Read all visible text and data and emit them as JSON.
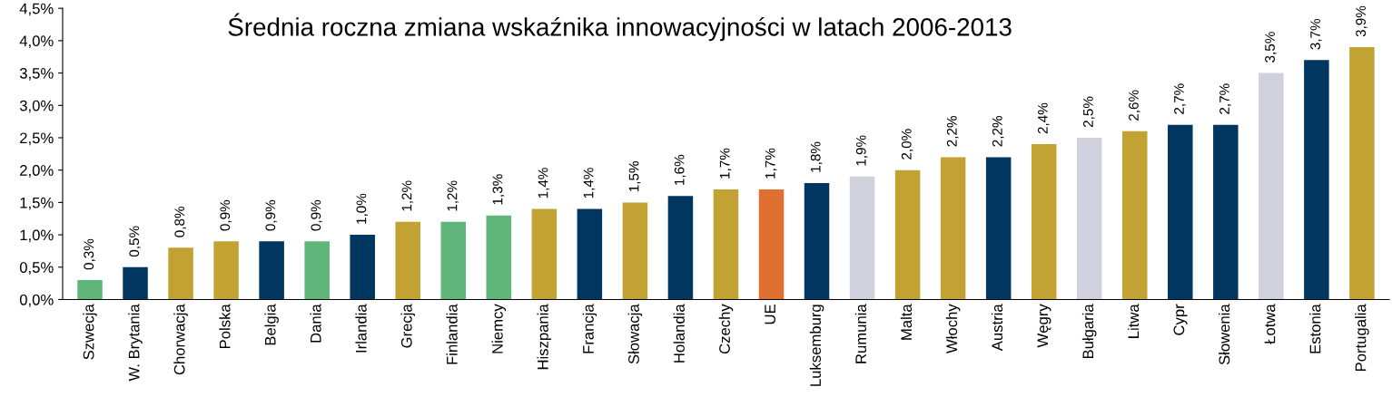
{
  "chart_data": {
    "type": "bar",
    "title": "Średnia roczna zmiana wskaźnika innowacyjności w latach 2006-2013",
    "categories": [
      "Szwecja",
      "W. Brytania",
      "Chorwacja",
      "Polska",
      "Belgia",
      "Dania",
      "Irlandia",
      "Grecja",
      "Finlandia",
      "Niemcy",
      "Hiszpania",
      "Francja",
      "Słowacja",
      "Holandia",
      "Czechy",
      "UE",
      "Luksemburg",
      "Rumunia",
      "Malta",
      "Włochy",
      "Austria",
      "Węgry",
      "Bułgaria",
      "Litwa",
      "Cypr",
      "Słowenia",
      "Łotwa",
      "Estonia",
      "Portugalia"
    ],
    "values": [
      0.3,
      0.5,
      0.8,
      0.9,
      0.9,
      0.9,
      1.0,
      1.2,
      1.2,
      1.3,
      1.4,
      1.4,
      1.5,
      1.6,
      1.7,
      1.7,
      1.8,
      1.9,
      2.0,
      2.2,
      2.2,
      2.4,
      2.5,
      2.6,
      2.7,
      2.7,
      3.5,
      3.7,
      3.9
    ],
    "value_labels": [
      "0,3%",
      "0,5%",
      "0,8%",
      "0,9%",
      "0,9%",
      "0,9%",
      "1,0%",
      "1,2%",
      "1,2%",
      "1,3%",
      "1,4%",
      "1,4%",
      "1,5%",
      "1,6%",
      "1,7%",
      "1,7%",
      "1,8%",
      "1,9%",
      "2,0%",
      "2,2%",
      "2,2%",
      "2,4%",
      "2,5%",
      "2,6%",
      "2,7%",
      "2,7%",
      "3,5%",
      "3,7%",
      "3,9%"
    ],
    "colors": [
      "#5fb57a",
      "#003660",
      "#c2a232",
      "#c2a232",
      "#003660",
      "#5fb57a",
      "#003660",
      "#c2a232",
      "#5fb57a",
      "#5fb57a",
      "#c2a232",
      "#003660",
      "#c2a232",
      "#003660",
      "#c2a232",
      "#e07030",
      "#003660",
      "#cfd1dc",
      "#c2a232",
      "#c2a232",
      "#003660",
      "#c2a232",
      "#cfd1dc",
      "#c2a232",
      "#003660",
      "#003660",
      "#cfd1dc",
      "#003660",
      "#c2a232"
    ],
    "ylim": [
      0,
      4.5
    ],
    "yticks": [
      {
        "value": 0,
        "label": "0,0%"
      },
      {
        "value": 0.5,
        "label": "0,5%"
      },
      {
        "value": 1,
        "label": "1,0%"
      },
      {
        "value": 1.5,
        "label": "1,5%"
      },
      {
        "value": 2,
        "label": "2,0%"
      },
      {
        "value": 2.5,
        "label": "2,5%"
      },
      {
        "value": 3,
        "label": "3,0%"
      },
      {
        "value": 3.5,
        "label": "3,5%"
      },
      {
        "value": 4,
        "label": "4,0%"
      },
      {
        "value": 4.5,
        "label": "4,5%"
      }
    ],
    "grid": false,
    "legend": false
  }
}
